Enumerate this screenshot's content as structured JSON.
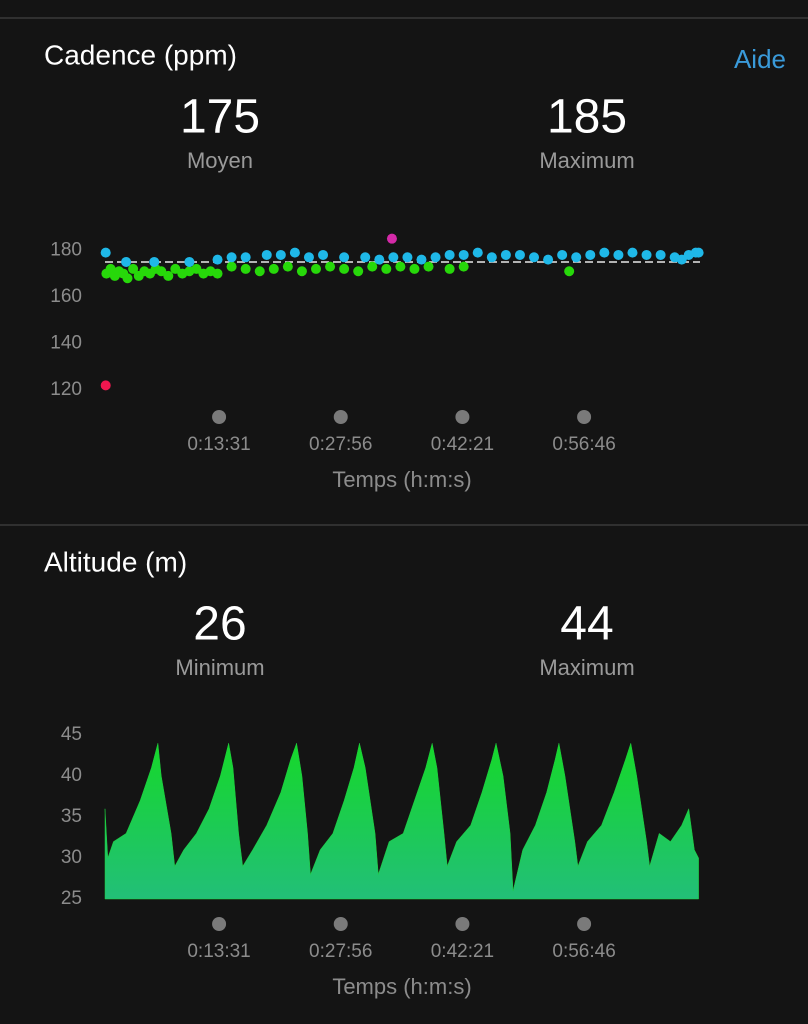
{
  "help_link": "Aide",
  "chart_data": [
    {
      "type": "scatter",
      "title": "Cadence (ppm)",
      "stats": [
        {
          "value": 175,
          "label": "Moyen"
        },
        {
          "value": 185,
          "label": "Maximum"
        }
      ],
      "xlabel": "Temps (h:m:s)",
      "xlim": [
        0,
        4230
      ],
      "xticks": [
        {
          "value": 811,
          "label": "0:13:31"
        },
        {
          "value": 1676,
          "label": "0:27:56"
        },
        {
          "value": 2541,
          "label": "0:42:21"
        },
        {
          "value": 3406,
          "label": "0:56:46"
        }
      ],
      "ylim": [
        117,
        187
      ],
      "yticks": [
        120,
        140,
        160,
        180
      ],
      "series": [
        {
          "color": "#27d80a",
          "x": [
            10,
            40,
            70,
            100,
            130,
            160,
            200,
            240,
            280,
            320,
            360,
            400,
            450,
            500,
            550,
            600,
            650,
            700,
            750,
            800,
            900,
            1000,
            1100,
            1200,
            1300,
            1400,
            1500,
            1600,
            1700,
            1800,
            1900,
            2000,
            2100,
            2200,
            2300,
            2450,
            2550,
            3300
          ],
          "values": [
            170,
            172,
            169,
            171,
            170,
            168,
            172,
            169,
            171,
            170,
            172,
            171,
            169,
            172,
            170,
            171,
            172,
            170,
            171,
            170,
            173,
            172,
            171,
            172,
            173,
            171,
            172,
            173,
            172,
            171,
            173,
            172,
            173,
            172,
            173,
            172,
            173,
            171
          ]
        },
        {
          "color": "#1fb8e8",
          "x": [
            5,
            150,
            350,
            600,
            800,
            900,
            1000,
            1150,
            1250,
            1350,
            1450,
            1550,
            1700,
            1850,
            1950,
            2050,
            2150,
            2250,
            2350,
            2450,
            2550,
            2650,
            2750,
            2850,
            2950,
            3050,
            3150,
            3250,
            3350,
            3450,
            3550,
            3650,
            3750,
            3850,
            3950,
            4050,
            4100,
            4150,
            4200,
            4220
          ],
          "values": [
            179,
            175,
            175,
            175,
            176,
            177,
            177,
            178,
            178,
            179,
            177,
            178,
            177,
            177,
            176,
            177,
            177,
            176,
            177,
            178,
            178,
            179,
            177,
            178,
            178,
            177,
            176,
            178,
            177,
            178,
            179,
            178,
            179,
            178,
            178,
            177,
            176,
            178,
            179,
            179
          ]
        },
        {
          "color": "#d42aa8",
          "x": [
            2040
          ],
          "values": [
            185
          ]
        },
        {
          "color": "#f0174f",
          "x": [
            5
          ],
          "values": [
            122
          ]
        }
      ]
    },
    {
      "type": "area",
      "title": "Altitude (m)",
      "stats": [
        {
          "value": 26,
          "label": "Minimum"
        },
        {
          "value": 44,
          "label": "Maximum"
        }
      ],
      "xlabel": "Temps (h:m:s)",
      "xlim": [
        0,
        4230
      ],
      "xticks": [
        {
          "value": 811,
          "label": "0:13:31"
        },
        {
          "value": 1676,
          "label": "0:27:56"
        },
        {
          "value": 2541,
          "label": "0:42:21"
        },
        {
          "value": 3406,
          "label": "0:56:46"
        }
      ],
      "ylim": [
        25,
        45
      ],
      "yticks": [
        25,
        30,
        35,
        40,
        45
      ],
      "color": "#1fd13e",
      "x": [
        0,
        20,
        60,
        150,
        250,
        330,
        376,
        400,
        470,
        496,
        560,
        650,
        740,
        820,
        879,
        910,
        950,
        979,
        1050,
        1150,
        1250,
        1320,
        1362,
        1400,
        1440,
        1461,
        1530,
        1620,
        1700,
        1770,
        1809,
        1850,
        1920,
        1943,
        2020,
        2120,
        2200,
        2280,
        2326,
        2360,
        2410,
        2433,
        2500,
        2600,
        2680,
        2750,
        2780,
        2830,
        2880,
        2901,
        2970,
        3060,
        3140,
        3200,
        3227,
        3270,
        3340,
        3362,
        3430,
        3530,
        3620,
        3700,
        3738,
        3780,
        3850,
        3872,
        3940,
        4020,
        4100,
        4150,
        4190,
        4220
      ],
      "values": [
        36,
        30,
        32,
        33,
        37,
        41,
        44,
        40,
        33,
        29,
        31,
        33,
        36,
        40,
        44,
        41,
        33,
        29,
        31,
        34,
        38,
        42,
        44,
        40,
        33,
        28,
        31,
        33,
        37,
        41,
        44,
        41,
        33,
        28,
        32,
        33,
        37,
        41,
        44,
        41,
        33,
        29,
        32,
        34,
        38,
        42,
        44,
        40,
        33,
        26,
        31,
        34,
        38,
        42,
        44,
        40,
        32,
        29,
        32,
        34,
        38,
        42,
        44,
        40,
        32,
        29,
        33,
        32,
        34,
        36,
        31,
        30
      ]
    }
  ]
}
